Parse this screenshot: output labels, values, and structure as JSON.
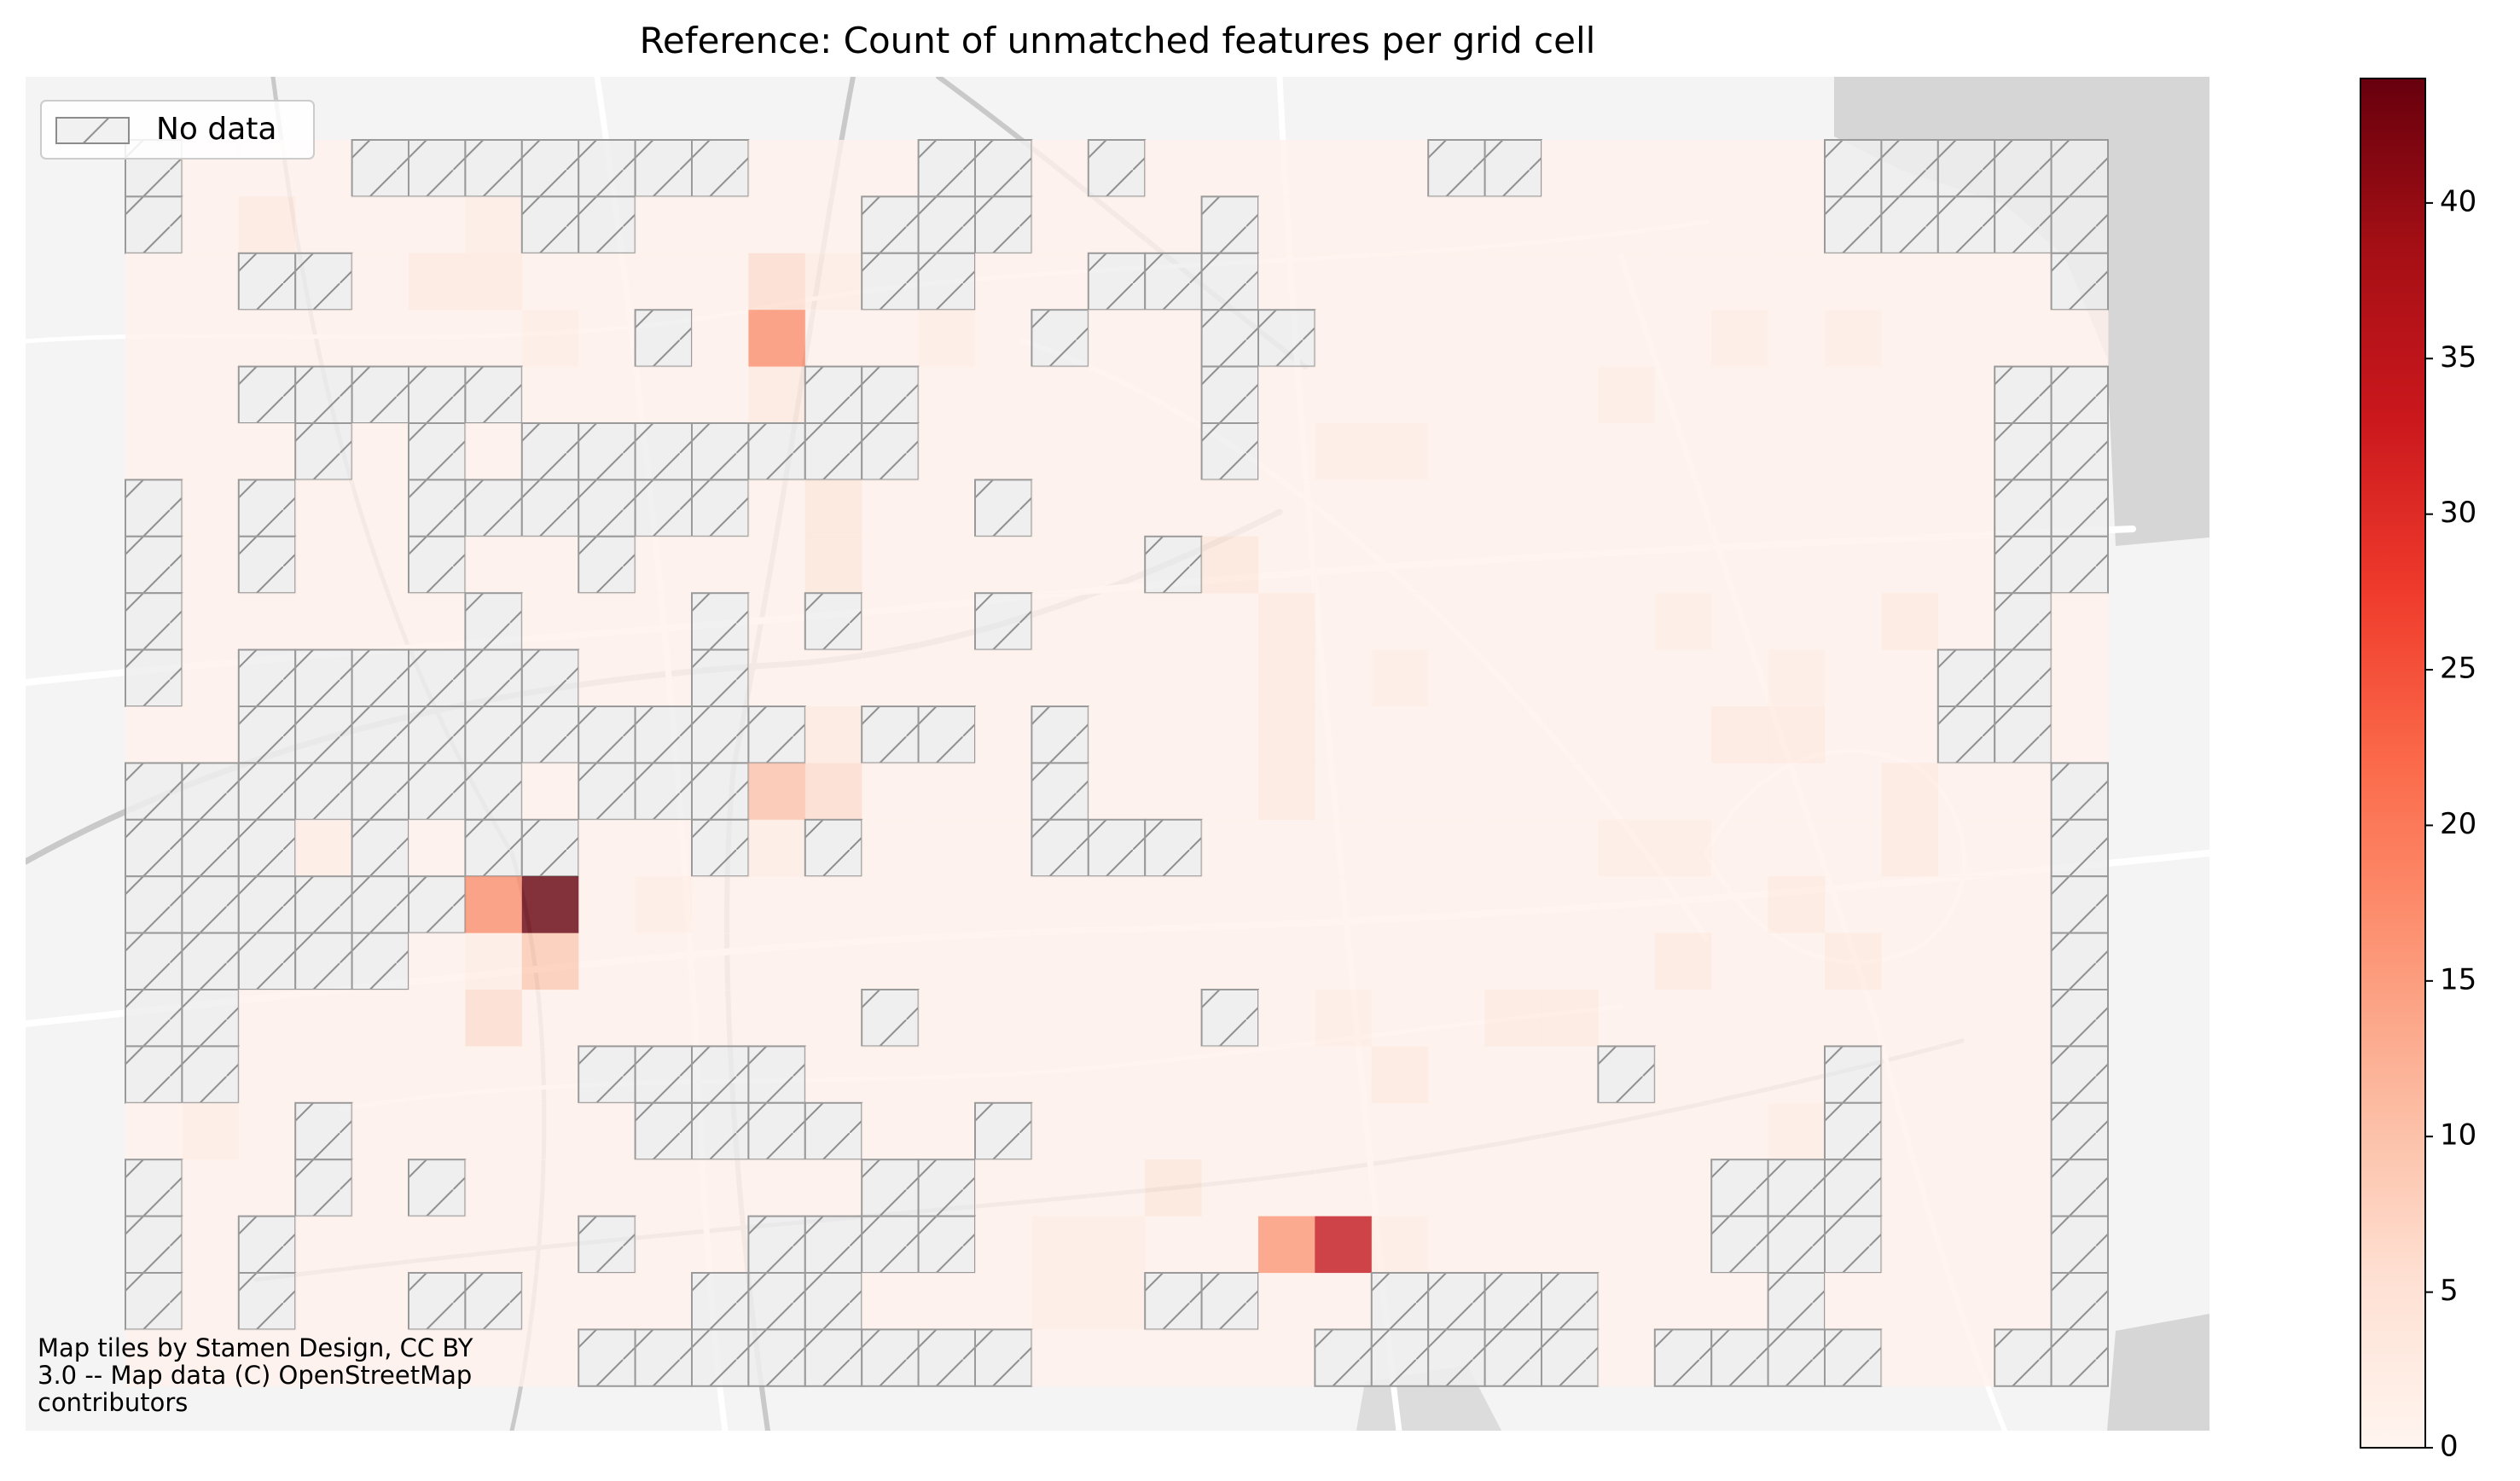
{
  "chart_data": {
    "type": "heatmap",
    "title": "Reference: Count of unmatched features per grid cell",
    "values": [
      [
        null,
        1,
        1,
        1,
        null,
        null,
        null,
        null,
        null,
        null,
        null,
        1,
        1,
        1,
        null,
        null,
        1,
        null,
        1,
        1,
        1,
        1,
        1,
        null,
        null,
        1,
        1,
        1,
        1,
        1,
        null,
        null,
        null,
        null,
        null
      ],
      [
        null,
        1,
        3,
        1,
        1,
        1,
        2,
        null,
        null,
        1,
        1,
        1,
        1,
        null,
        null,
        null,
        1,
        1,
        1,
        null,
        1,
        1,
        1,
        1,
        1,
        1,
        1,
        1,
        1,
        1,
        null,
        null,
        null,
        null,
        null
      ],
      [
        1,
        1,
        null,
        null,
        1,
        3,
        3,
        1,
        1,
        1,
        1,
        6,
        2,
        null,
        null,
        1,
        1,
        null,
        null,
        null,
        1,
        1,
        1,
        1,
        1,
        1,
        1,
        1,
        1,
        1,
        1,
        1,
        1,
        1,
        null
      ],
      [
        1,
        1,
        1,
        1,
        1,
        1,
        1,
        2,
        1,
        null,
        1,
        17,
        1,
        1,
        2,
        1,
        null,
        1,
        1,
        null,
        null,
        1,
        1,
        1,
        1,
        1,
        1,
        1,
        2,
        1,
        2,
        1,
        1,
        1,
        1
      ],
      [
        1,
        1,
        null,
        null,
        null,
        null,
        null,
        1,
        1,
        1,
        1,
        3,
        null,
        null,
        1,
        1,
        1,
        1,
        1,
        null,
        1,
        1,
        1,
        1,
        1,
        1,
        2,
        1,
        1,
        1,
        1,
        1,
        1,
        null,
        null
      ],
      [
        1,
        1,
        1,
        null,
        1,
        null,
        1,
        null,
        null,
        null,
        null,
        null,
        null,
        null,
        1,
        1,
        1,
        1,
        1,
        null,
        1,
        2,
        2,
        1,
        1,
        1,
        1,
        1,
        1,
        1,
        1,
        1,
        1,
        null,
        null
      ],
      [
        null,
        1,
        null,
        1,
        1,
        null,
        null,
        null,
        null,
        null,
        null,
        1,
        4,
        1,
        1,
        null,
        1,
        1,
        1,
        1,
        1,
        1,
        1,
        1,
        1,
        1,
        1,
        1,
        1,
        1,
        1,
        1,
        1,
        null,
        null
      ],
      [
        null,
        1,
        null,
        1,
        1,
        null,
        1,
        1,
        null,
        1,
        1,
        1,
        4,
        1,
        1,
        1,
        1,
        1,
        null,
        4,
        1,
        1,
        1,
        1,
        1,
        1,
        1,
        1,
        1,
        1,
        1,
        1,
        1,
        null,
        null
      ],
      [
        null,
        1,
        1,
        1,
        1,
        1,
        null,
        1,
        1,
        1,
        null,
        1,
        null,
        1,
        1,
        null,
        1,
        1,
        1,
        1,
        3,
        1,
        1,
        1,
        1,
        1,
        1,
        2,
        1,
        1,
        1,
        3,
        1,
        null,
        1
      ],
      [
        null,
        1,
        null,
        null,
        null,
        null,
        null,
        null,
        1,
        1,
        null,
        1,
        1,
        1,
        1,
        1,
        1,
        1,
        1,
        1,
        3,
        1,
        2,
        1,
        1,
        1,
        1,
        1,
        1,
        2,
        1,
        1,
        null,
        null,
        1
      ],
      [
        1,
        1,
        null,
        null,
        null,
        null,
        null,
        null,
        null,
        null,
        null,
        null,
        3,
        null,
        null,
        1,
        null,
        1,
        1,
        1,
        3,
        1,
        1,
        1,
        1,
        1,
        1,
        1,
        3,
        3,
        1,
        1,
        null,
        null,
        1
      ],
      [
        null,
        null,
        null,
        null,
        null,
        null,
        null,
        1,
        null,
        null,
        null,
        10,
        6,
        1,
        1,
        1,
        null,
        1,
        1,
        1,
        3,
        1,
        1,
        1,
        1,
        1,
        1,
        1,
        1,
        1,
        1,
        3,
        1,
        1,
        null
      ],
      [
        null,
        null,
        null,
        2,
        null,
        1,
        null,
        null,
        1,
        1,
        null,
        2,
        null,
        1,
        1,
        1,
        null,
        null,
        null,
        1,
        1,
        1,
        1,
        1,
        1,
        1,
        2,
        2,
        1,
        1,
        1,
        3,
        1,
        1,
        null
      ],
      [
        null,
        null,
        null,
        null,
        null,
        null,
        17,
        44,
        1,
        2,
        1,
        1,
        1,
        1,
        1,
        1,
        1,
        1,
        1,
        1,
        1,
        1,
        1,
        1,
        1,
        1,
        1,
        1,
        1,
        3,
        1,
        1,
        1,
        1,
        null
      ],
      [
        null,
        null,
        null,
        null,
        null,
        1,
        2,
        9,
        1,
        1,
        1,
        1,
        1,
        1,
        1,
        1,
        1,
        1,
        1,
        1,
        1,
        1,
        1,
        1,
        1,
        1,
        1,
        3,
        1,
        1,
        3,
        1,
        1,
        1,
        null
      ],
      [
        null,
        null,
        1,
        1,
        1,
        1,
        6,
        1,
        1,
        1,
        1,
        1,
        1,
        null,
        1,
        1,
        1,
        1,
        1,
        null,
        1,
        2,
        1,
        1,
        3,
        3,
        1,
        1,
        1,
        1,
        1,
        1,
        1,
        1,
        null
      ],
      [
        null,
        null,
        1,
        1,
        1,
        1,
        1,
        1,
        null,
        null,
        null,
        null,
        1,
        1,
        1,
        1,
        1,
        1,
        1,
        1,
        1,
        1,
        3,
        1,
        1,
        1,
        null,
        1,
        1,
        1,
        null,
        1,
        1,
        1,
        null
      ],
      [
        1,
        2,
        1,
        null,
        1,
        1,
        1,
        1,
        1,
        null,
        null,
        null,
        null,
        1,
        1,
        null,
        1,
        1,
        1,
        1,
        1,
        1,
        1,
        1,
        1,
        1,
        1,
        1,
        1,
        2,
        null,
        1,
        1,
        1,
        null
      ],
      [
        null,
        1,
        1,
        null,
        1,
        null,
        1,
        1,
        1,
        1,
        1,
        1,
        1,
        null,
        null,
        1,
        1,
        1,
        4,
        1,
        1,
        1,
        1,
        1,
        1,
        1,
        1,
        1,
        null,
        null,
        null,
        1,
        1,
        1,
        null
      ],
      [
        null,
        1,
        null,
        1,
        1,
        1,
        1,
        1,
        null,
        1,
        1,
        null,
        null,
        null,
        null,
        1,
        2,
        2,
        1,
        1,
        16,
        34,
        2,
        1,
        1,
        1,
        1,
        1,
        null,
        null,
        null,
        1,
        1,
        1,
        null
      ],
      [
        null,
        1,
        null,
        1,
        1,
        null,
        null,
        1,
        1,
        1,
        null,
        null,
        null,
        1,
        1,
        1,
        2,
        2,
        null,
        null,
        1,
        1,
        null,
        null,
        null,
        null,
        1,
        1,
        1,
        null,
        1,
        1,
        1,
        1,
        null
      ],
      [
        1,
        1,
        1,
        1,
        1,
        1,
        1,
        1,
        null,
        null,
        null,
        null,
        null,
        null,
        null,
        null,
        1,
        1,
        1,
        1,
        1,
        null,
        null,
        null,
        null,
        null,
        1,
        null,
        null,
        null,
        null,
        1,
        1,
        null,
        null
      ]
    ],
    "colormap": [
      "#fff5f0",
      "#fee0d2",
      "#fcbba1",
      "#fc9272",
      "#fb6a4a",
      "#ef3b2c",
      "#cb181d",
      "#a50f15",
      "#67000d"
    ],
    "clim": [
      0,
      44
    ],
    "colorbar_ticks": [
      0,
      5,
      10,
      15,
      20,
      25,
      30,
      35,
      40
    ],
    "legend": {
      "label": "No data",
      "loc": "upper left"
    },
    "attribution": [
      "Map tiles by Stamen Design, CC BY",
      "3.0 -- Map data (C) OpenStreetMap",
      "contributors"
    ]
  }
}
